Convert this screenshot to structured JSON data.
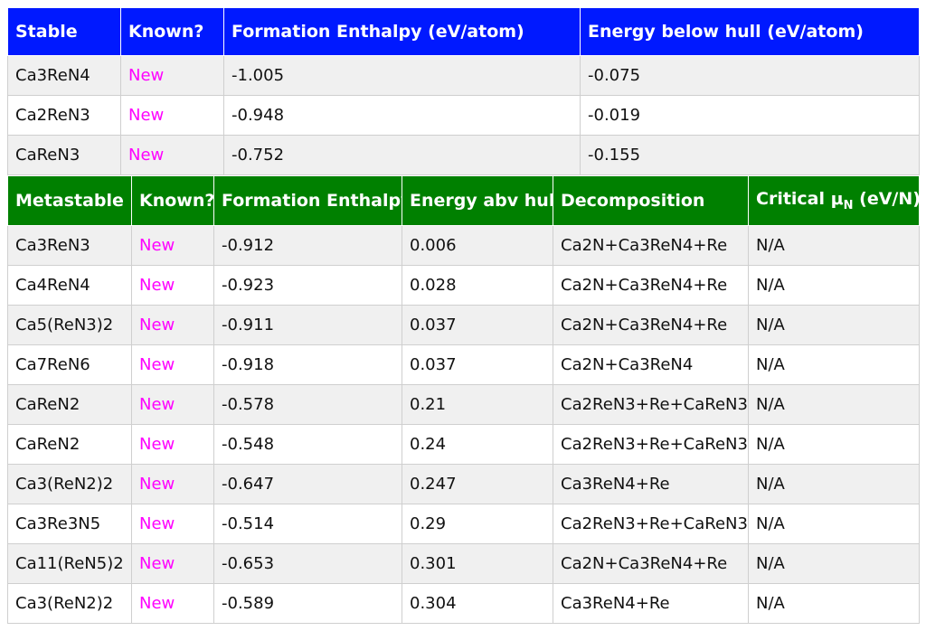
{
  "stable": {
    "headers": [
      "Stable",
      "Known?",
      "Formation Enthalpy (eV/atom)",
      "Energy below hull (eV/atom)"
    ],
    "rows": [
      [
        "Ca3ReN4",
        "New",
        "-1.005",
        "-0.075"
      ],
      [
        "Ca2ReN3",
        "New",
        "-0.948",
        "-0.019"
      ],
      [
        "CaReN3",
        "New",
        "-0.752",
        "-0.155"
      ]
    ]
  },
  "metastable": {
    "headers": [
      "Metastable",
      "Known?",
      "Formation Enthalpy",
      "Energy abv hull",
      "Decomposition"
    ],
    "critical_header": {
      "prefix": "Critical μ",
      "sub": "N",
      "suffix": " (eV/N)"
    },
    "rows": [
      [
        "Ca3ReN3",
        "New",
        "-0.912",
        "0.006",
        "Ca2N+Ca3ReN4+Re",
        "N/A"
      ],
      [
        "Ca4ReN4",
        "New",
        "-0.923",
        "0.028",
        "Ca2N+Ca3ReN4+Re",
        "N/A"
      ],
      [
        "Ca5(ReN3)2",
        "New",
        "-0.911",
        "0.037",
        "Ca2N+Ca3ReN4+Re",
        "N/A"
      ],
      [
        "Ca7ReN6",
        "New",
        "-0.918",
        "0.037",
        "Ca2N+Ca3ReN4",
        "N/A"
      ],
      [
        "CaReN2",
        "New",
        "-0.578",
        "0.21",
        "Ca2ReN3+Re+CaReN3",
        "N/A"
      ],
      [
        "CaReN2",
        "New",
        "-0.548",
        "0.24",
        "Ca2ReN3+Re+CaReN3",
        "N/A"
      ],
      [
        "Ca3(ReN2)2",
        "New",
        "-0.647",
        "0.247",
        "Ca3ReN4+Re",
        "N/A"
      ],
      [
        "Ca3Re3N5",
        "New",
        "-0.514",
        "0.29",
        "Ca2ReN3+Re+CaReN3",
        "N/A"
      ],
      [
        "Ca11(ReN5)2",
        "New",
        "-0.653",
        "0.301",
        "Ca2N+Ca3ReN4+Re",
        "N/A"
      ],
      [
        "Ca3(ReN2)2",
        "New",
        "-0.589",
        "0.304",
        "Ca3ReN4+Re",
        "N/A"
      ]
    ]
  },
  "colors": {
    "stable_header": "#0019ff",
    "metastable_header": "#008000",
    "new_text": "#ff00ff"
  }
}
